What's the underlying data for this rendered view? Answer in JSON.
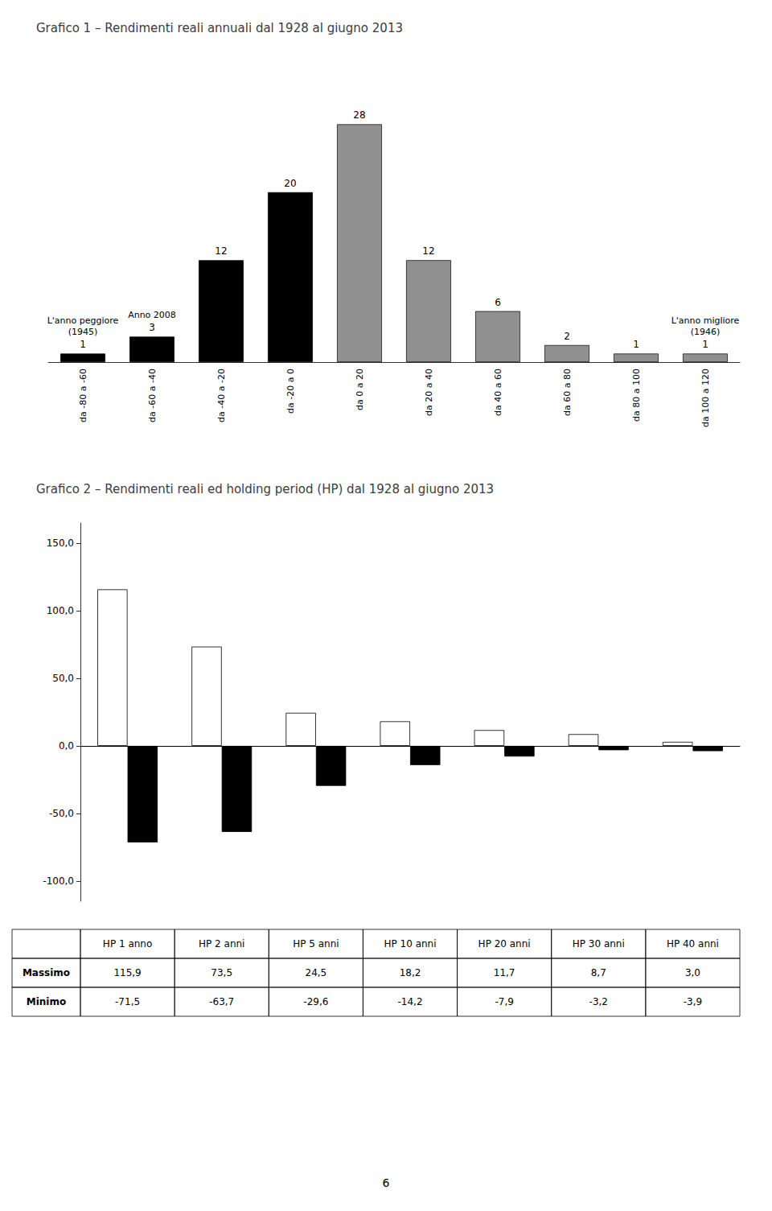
{
  "chart_data": [
    {
      "type": "bar",
      "title": "Grafico 1 – Rendimenti reali annuali dal 1928 al giugno 2013",
      "categories": [
        "da -80 a -60",
        "da -60 a -40",
        "da -40 a -20",
        "da -20 a 0",
        "da 0 a 20",
        "da 20 a 40",
        "da 40 a 60",
        "da 60 a 80",
        "da 80 a 100",
        "da 100 a 120"
      ],
      "values": [
        1,
        3,
        12,
        20,
        28,
        12,
        6,
        2,
        1,
        1
      ],
      "colors": [
        "#000000",
        "#000000",
        "#000000",
        "#000000",
        "#909090",
        "#909090",
        "#909090",
        "#909090",
        "#909090",
        "#909090"
      ],
      "ylim": [
        0,
        36
      ],
      "data_labels": true,
      "tick_labels": "x",
      "grid": false,
      "annotations": [
        {
          "text": "L'anno peggiore\n(1945)",
          "category": "da -80 a -60"
        },
        {
          "text": "Anno 2008",
          "category": "da -60 a -40"
        },
        {
          "text": "L'anno migliore\n(1946)",
          "category": "da 100 a 120"
        }
      ]
    },
    {
      "type": "bar",
      "title": "Grafico 2 – Rendimenti reali ed holding period (HP) dal 1928 al giugno 2013",
      "categories": [
        "HP 1 anno",
        "HP 2 anni",
        "HP 5 anni",
        "HP 10 anni",
        "HP 20 anni",
        "HP 30 anni",
        "HP 40 anni"
      ],
      "series": [
        {
          "name": "Massimo",
          "color": "#ffffff",
          "values": [
            115.9,
            73.5,
            24.5,
            18.2,
            11.7,
            8.7,
            3.0
          ],
          "value_labels": [
            "115,9",
            "73,5",
            "24,5",
            "18,2",
            "11,7",
            "8,7",
            "3,0"
          ]
        },
        {
          "name": "Minimo",
          "color": "#000000",
          "values": [
            -71.5,
            -63.7,
            -29.6,
            -14.2,
            -7.9,
            -3.2,
            -3.9
          ],
          "value_labels": [
            "-71,5",
            "-63,7",
            "-29,6",
            "-14,2",
            "-7,9",
            "-3,2",
            "-3,9"
          ]
        }
      ],
      "ylim": [
        -115,
        165
      ],
      "yticks": [
        {
          "value": -100,
          "label": "-100,0"
        },
        {
          "value": -50,
          "label": "-50,0"
        },
        {
          "value": 0,
          "label": "0,0"
        },
        {
          "value": 50,
          "label": "50,0"
        },
        {
          "value": 100,
          "label": "100,0"
        },
        {
          "value": 150,
          "label": "150,0"
        }
      ],
      "grid": false,
      "tick_labels": "y",
      "annotations": [
        {
          "text": "6"
        }
      ]
    }
  ]
}
